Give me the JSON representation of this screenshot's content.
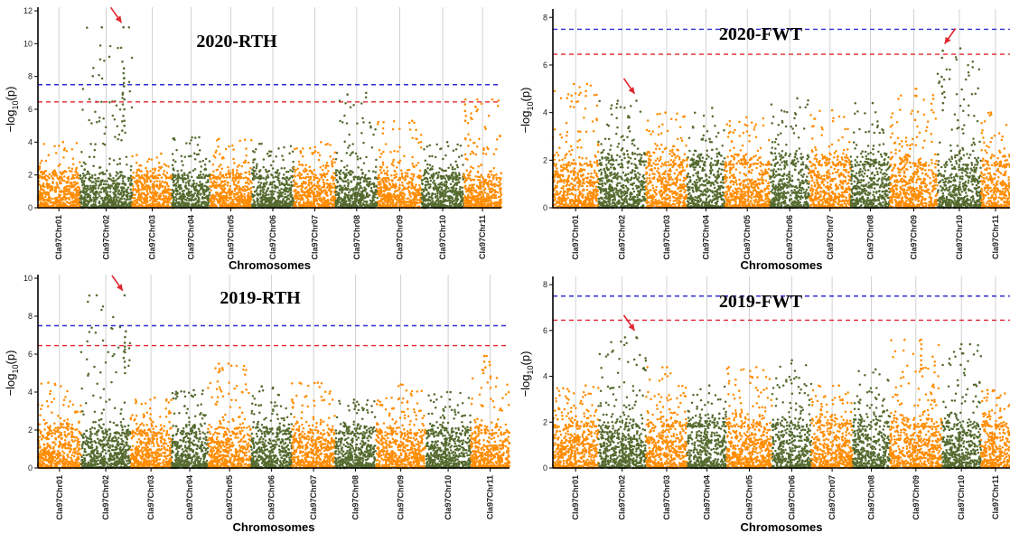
{
  "figure": {
    "rows": 2,
    "cols": 2
  },
  "colors": {
    "odd_chrom": "#FF8C00",
    "even_chrom": "#556B2F",
    "blue_line": "#2E2ED6",
    "red_line": "#E0262E",
    "arrow": "#E0262E",
    "grid": "#c8c8c8"
  },
  "chart_data": [
    {
      "type": "scatter",
      "title": "2020-RTH",
      "xlabel": "Chromosomes",
      "ylabel": "−log10(p)",
      "ylim": [
        0,
        12
      ],
      "yticks": [
        0,
        2,
        4,
        6,
        8,
        10,
        12
      ],
      "categories": [
        "Cla97Chr01",
        "Cla97Chr02",
        "Cla97Chr03",
        "Cla97Chr04",
        "Cla97Chr05",
        "Cla97Chr06",
        "Cla97Chr07",
        "Cla97Chr08",
        "Cla97Chr09",
        "Cla97Chr10",
        "Cla97Chr11"
      ],
      "thresholds": [
        {
          "value": 7.5,
          "color": "blue"
        },
        {
          "value": 6.45,
          "color": "red"
        }
      ],
      "chrom_width": [
        1.0,
        1.25,
        0.95,
        0.9,
        1.0,
        1.0,
        1.0,
        1.0,
        1.05,
        1.0,
        0.9
      ],
      "chrom_peak": [
        4.0,
        11.0,
        3.3,
        4.3,
        4.2,
        3.9,
        4.0,
        7.0,
        5.3,
        4.0,
        6.6
      ],
      "signals": [
        {
          "chrom": "Cla97Chr02",
          "pos": 0.83,
          "values": [
            11.0,
            8.9,
            8.5,
            8.2,
            7.9,
            7.6,
            7.4,
            7.0,
            6.9,
            6.6,
            6.3,
            6.0,
            5.6,
            5.3,
            5.0,
            4.7
          ]
        },
        {
          "chrom": "Cla97Chr08",
          "pos": 0.28,
          "values": [
            6.9
          ]
        },
        {
          "chrom": "Cla97Chr11",
          "pos": 0.05,
          "values": [
            6.6,
            6.3,
            5.9,
            5.6,
            5.3
          ]
        }
      ],
      "arrow": {
        "chrom": "Cla97Chr02",
        "pos": 0.83,
        "y": 11.0
      }
    },
    {
      "type": "scatter",
      "title": "2020-FWT",
      "xlabel": "Chromosomes",
      "ylabel": "−log10(p)",
      "ylim": [
        0,
        8.2
      ],
      "yticks": [
        0,
        2,
        4,
        6,
        8
      ],
      "categories": [
        "Cla97Chr01",
        "Cla97Chr02",
        "Cla97Chr03",
        "Cla97Chr04",
        "Cla97Chr05",
        "Cla97Chr06",
        "Cla97Chr07",
        "Cla97Chr08",
        "Cla97Chr09",
        "Cla97Chr10",
        "Cla97Chr11"
      ],
      "thresholds": [
        {
          "value": 7.5,
          "color": "blue"
        },
        {
          "value": 6.45,
          "color": "red"
        }
      ],
      "chrom_width": [
        1.1,
        1.15,
        1.0,
        0.9,
        1.1,
        0.95,
        1.0,
        0.95,
        1.15,
        1.05,
        0.7
      ],
      "chrom_peak": [
        5.2,
        4.5,
        4.0,
        4.2,
        3.8,
        4.6,
        4.1,
        4.4,
        5.0,
        6.7,
        4.0
      ],
      "signals": [
        {
          "chrom": "Cla97Chr02",
          "pos": 0.8,
          "values": [
            4.5
          ]
        },
        {
          "chrom": "Cla97Chr10",
          "pos": 0.12,
          "values": [
            6.6,
            6.3,
            5.5,
            5.1,
            4.8,
            4.4,
            4.1
          ]
        },
        {
          "chrom": "Cla97Chr01",
          "pos": 0.75,
          "values": [
            5.2,
            4.9,
            4.7
          ]
        },
        {
          "chrom": "Cla97Chr09",
          "pos": 0.55,
          "values": [
            5.0,
            4.7
          ]
        }
      ],
      "arrows": [
        {
          "chrom": "Cla97Chr02",
          "pos": 0.8,
          "y": 4.6
        },
        {
          "chrom": "Cla97Chr10",
          "pos": 0.12,
          "y": 6.7
        }
      ]
    },
    {
      "type": "scatter",
      "title": "2019-RTH",
      "xlabel": "Chromosomes",
      "ylabel": "−log10(p)",
      "ylim": [
        0,
        10
      ],
      "yticks": [
        0,
        2,
        4,
        6,
        8,
        10
      ],
      "categories": [
        "Cla97Chr01",
        "Cla97Chr02",
        "Cla97Chr03",
        "Cla97Chr04",
        "Cla97Chr05",
        "Cla97Chr06",
        "Cla97Chr07",
        "Cla97Chr08",
        "Cla97Chr09",
        "Cla97Chr10",
        "Cla97Chr11"
      ],
      "thresholds": [
        {
          "value": 7.5,
          "color": "blue"
        },
        {
          "value": 6.45,
          "color": "red"
        }
      ],
      "chrom_width": [
        1.0,
        1.15,
        0.95,
        0.85,
        1.0,
        0.95,
        1.0,
        0.95,
        1.15,
        1.05,
        0.9
      ],
      "chrom_peak": [
        4.5,
        9.1,
        3.7,
        4.1,
        5.5,
        4.3,
        4.5,
        3.6,
        4.4,
        4.0,
        5.9
      ],
      "signals": [
        {
          "chrom": "Cla97Chr02",
          "pos": 0.88,
          "values": [
            9.1,
            7.2,
            6.9,
            6.6,
            6.4,
            6.1,
            5.8,
            5.6,
            5.3,
            5.0
          ]
        },
        {
          "chrom": "Cla97Chr11",
          "pos": 0.35,
          "values": [
            5.9,
            5.6,
            5.3,
            5.0
          ]
        },
        {
          "chrom": "Cla97Chr05",
          "pos": 0.25,
          "values": [
            5.5,
            5.1
          ]
        }
      ],
      "arrow": {
        "chrom": "Cla97Chr02",
        "pos": 0.88,
        "y": 9.1
      }
    },
    {
      "type": "scatter",
      "title": "2019-FWT",
      "xlabel": "Chromosomes",
      "ylabel": "−log10(p)",
      "ylim": [
        0,
        8.2
      ],
      "yticks": [
        0,
        2,
        4,
        6,
        8
      ],
      "categories": [
        "Cla97Chr01",
        "Cla97Chr02",
        "Cla97Chr03",
        "Cla97Chr04",
        "Cla97Chr05",
        "Cla97Chr06",
        "Cla97Chr07",
        "Cla97Chr08",
        "Cla97Chr09",
        "Cla97Chr10",
        "Cla97Chr11"
      ],
      "thresholds": [
        {
          "value": 7.5,
          "color": "blue"
        },
        {
          "value": 6.45,
          "color": "red"
        }
      ],
      "chrom_width": [
        1.1,
        1.15,
        1.0,
        0.95,
        1.1,
        0.95,
        1.0,
        0.9,
        1.25,
        0.95,
        0.7
      ],
      "chrom_peak": [
        3.6,
        5.7,
        4.4,
        3.6,
        4.4,
        4.7,
        3.6,
        4.3,
        5.6,
        5.4,
        3.4
      ],
      "signals": [
        {
          "chrom": "Cla97Chr02",
          "pos": 0.8,
          "values": [
            5.7,
            4.5
          ]
        },
        {
          "chrom": "Cla97Chr09",
          "pos": 0.6,
          "values": [
            5.6,
            5.4,
            5.2,
            4.9,
            4.7,
            4.5,
            4.3,
            4.0
          ]
        },
        {
          "chrom": "Cla97Chr10",
          "pos": 0.5,
          "values": [
            5.4,
            5.0,
            4.5
          ]
        }
      ],
      "arrow": {
        "chrom": "Cla97Chr02",
        "pos": 0.8,
        "y": 5.8
      }
    }
  ]
}
